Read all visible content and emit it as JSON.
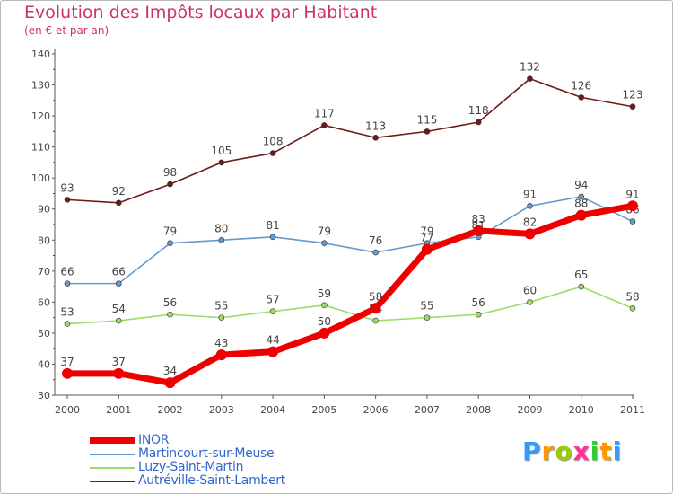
{
  "chart_data": {
    "type": "line",
    "title": "Evolution des Impôts locaux par Habitant",
    "subtitle": "(en € et par an)",
    "x": [
      "2000",
      "2001",
      "2002",
      "2003",
      "2004",
      "2005",
      "2006",
      "2007",
      "2008",
      "2009",
      "2010",
      "2011"
    ],
    "ylim": [
      30,
      140
    ],
    "yticks": [
      30,
      40,
      50,
      60,
      70,
      80,
      90,
      100,
      110,
      120,
      130,
      140
    ],
    "grid": false,
    "series": [
      {
        "name": "Autréville-Saint-Lambert",
        "color": "#6e1a1a",
        "values": [
          93,
          92,
          98,
          105,
          108,
          117,
          113,
          115,
          118,
          132,
          126,
          123
        ],
        "labels": [
          "93",
          "92",
          "98",
          "105",
          "108",
          "117",
          "113",
          "115",
          "118",
          "132",
          "126",
          "123"
        ]
      },
      {
        "name": "Martincourt-sur-Meuse",
        "color": "#6699cc",
        "values": [
          66,
          66,
          79,
          80,
          81,
          79,
          76,
          79,
          81,
          91,
          94,
          86
        ],
        "labels": [
          "66",
          "66",
          "79",
          "80",
          "81",
          "79",
          "76",
          "79",
          "81",
          "91",
          "94",
          "86"
        ]
      },
      {
        "name": "Luzy-Saint-Martin",
        "color": "#99dd66",
        "values": [
          53,
          54,
          56,
          55,
          57,
          59,
          54,
          55,
          56,
          60,
          65,
          58
        ],
        "labels": [
          "53",
          "54",
          "56",
          "55",
          "57",
          "59",
          "54",
          "55",
          "56",
          "60",
          "65",
          "58"
        ]
      },
      {
        "name": "INOR",
        "color": "#ee0000",
        "values": [
          37,
          37,
          34,
          43,
          44,
          50,
          58,
          77,
          83,
          82,
          88,
          91
        ],
        "labels": [
          "37",
          "37",
          "34",
          "43",
          "44",
          "50",
          "58",
          "77",
          "83",
          "82",
          "88",
          "91"
        ]
      }
    ],
    "legend": [
      "INOR",
      "Martincourt-sur-Meuse",
      "Luzy-Saint-Martin",
      "Autréville-Saint-Lambert"
    ]
  },
  "brand": {
    "letters": [
      "P",
      "r",
      "o",
      "x",
      "i",
      "t",
      "i"
    ],
    "colors": [
      "#3399ff",
      "#ff9900",
      "#99cc00",
      "#ff3399",
      "#33cc33",
      "#ff9900",
      "#3399ff"
    ]
  },
  "colors": {
    "axis": "#555555",
    "text": "#444444",
    "title": "#cc3366",
    "legend_text": "#3366cc"
  }
}
